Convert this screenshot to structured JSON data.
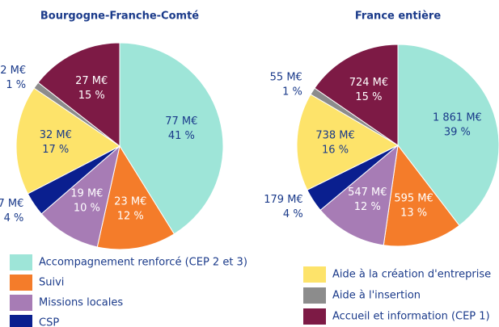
{
  "chart_data": [
    {
      "type": "pie",
      "title": "Bourgogne-Franche-Comté",
      "values": [
        77,
        23,
        19,
        7,
        32,
        2,
        27
      ],
      "value_labels": [
        "77 M€",
        "23 M€",
        "19 M€",
        "7 M€",
        "32 M€",
        "2 M€",
        "27 M€"
      ],
      "percents": [
        41,
        12,
        10,
        4,
        17,
        1,
        15
      ],
      "percent_labels": [
        "41 %",
        "12 %",
        "10 %",
        "4 %",
        "17 %",
        "1 %",
        "15 %"
      ]
    },
    {
      "type": "pie",
      "title": "France entière",
      "values": [
        1861,
        595,
        547,
        179,
        738,
        55,
        724
      ],
      "value_labels": [
        "1 861 M€",
        "595 M€",
        "547 M€",
        "179 M€",
        "738 M€",
        "55 M€",
        "724 M€"
      ],
      "percents": [
        39,
        13,
        12,
        4,
        16,
        1,
        15
      ],
      "percent_labels": [
        "39 %",
        "13 %",
        "12 %",
        "4 %",
        "16 %",
        "1 %",
        "15 %"
      ]
    }
  ],
  "legend": [
    {
      "name": "Accompagnement renforcé (CEP 2 et 3)",
      "color": "#9ee5d8"
    },
    {
      "name": "Suivi",
      "color": "#f47c2a"
    },
    {
      "name": "Missions locales",
      "color": "#a77cb5"
    },
    {
      "name": "CSP",
      "color": "#0a1f8f"
    },
    {
      "name": "Aide à la création d'entreprise",
      "color": "#fde36a"
    },
    {
      "name": "Aide à l'insertion",
      "color": "#8c8c8c"
    },
    {
      "name": "Accueil et information (CEP 1)",
      "color": "#7d1a45"
    }
  ]
}
